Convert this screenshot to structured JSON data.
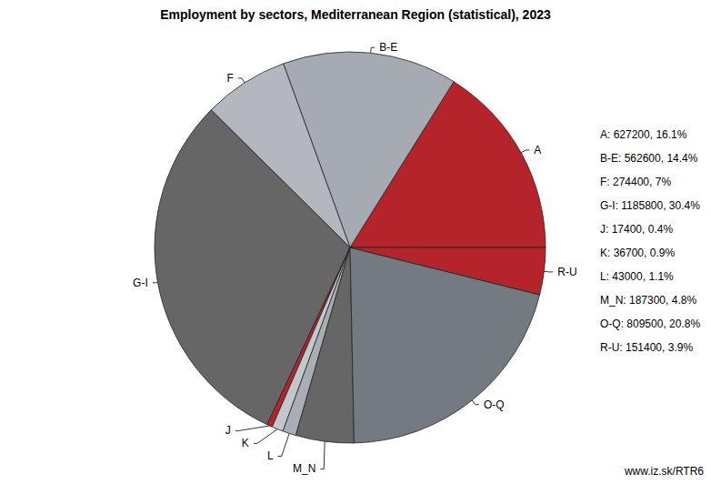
{
  "chart_data": {
    "type": "pie",
    "title": "Employment by sectors, Mediterranean Region (statistical), 2023",
    "categories": [
      "A",
      "B-E",
      "F",
      "G-I",
      "J",
      "K",
      "L",
      "M_N",
      "O-Q",
      "R-U"
    ],
    "values": [
      627200,
      562600,
      274400,
      1185800,
      17400,
      36700,
      43000,
      187300,
      809500,
      151400
    ],
    "value_labels": [
      "A: 627200, 16.1%",
      "B-E: 562600, 14.4%",
      "F: 274400, 7%",
      "G-I: 1185800, 30.4%",
      "J: 17400, 0.4%",
      "K: 36700, 0.9%",
      "L: 43000, 1.1%",
      "M_N: 187300, 4.8%",
      "O-Q: 809500, 20.8%",
      "R-U: 151400, 3.9%"
    ],
    "colors": [
      "#b5242a",
      "#a6abb2",
      "#b4b8be",
      "#666666",
      "#b5242a",
      "#c3c6cb",
      "#a9aeb4",
      "#666666",
      "#737a81",
      "#b5242a"
    ],
    "source": "www.iz.sk/RTR6"
  }
}
